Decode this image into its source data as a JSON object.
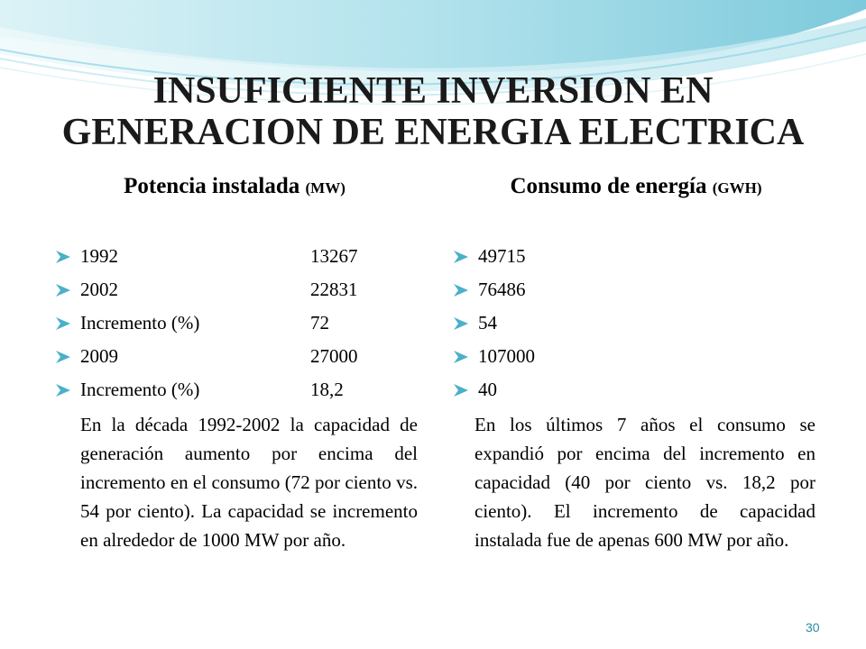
{
  "slide": {
    "title_line1": "INSUFICIENTE INVERSION EN",
    "title_line2": "GENERACION DE ENERGIA ELECTRICA",
    "page_number": "30",
    "accent_color": "#2b8aa5",
    "bullet_color": "#4bb0c9"
  },
  "left": {
    "heading": "Potencia instalada",
    "unit": "(MW)",
    "items": [
      {
        "label": "1992",
        "value": "13267"
      },
      {
        "label": "2002",
        "value": "22831"
      },
      {
        "label": "Incremento (%)",
        "value": "72"
      },
      {
        "label": "2009",
        "value": "27000"
      },
      {
        "label": "Incremento (%)",
        "value": "18,2"
      }
    ],
    "paragraph": "En la década 1992-2002 la capacidad de generación aumento por encima del incremento en el consumo (72 por ciento vs. 54 por ciento). La capacidad se incremento en alrededor de 1000 MW por año."
  },
  "right": {
    "heading": "Consumo de energía",
    "unit": "(GWH)",
    "items": [
      {
        "value": "49715"
      },
      {
        "value": "76486"
      },
      {
        "value": "54"
      },
      {
        "value": "107000"
      },
      {
        "value": "40"
      }
    ],
    "paragraph": "En los últimos 7 años el consumo se expandió por encima del incremento en capacidad (40 por ciento vs. 18,2 por ciento). El incremento de capacidad instalada fue de apenas 600 MW por año."
  }
}
